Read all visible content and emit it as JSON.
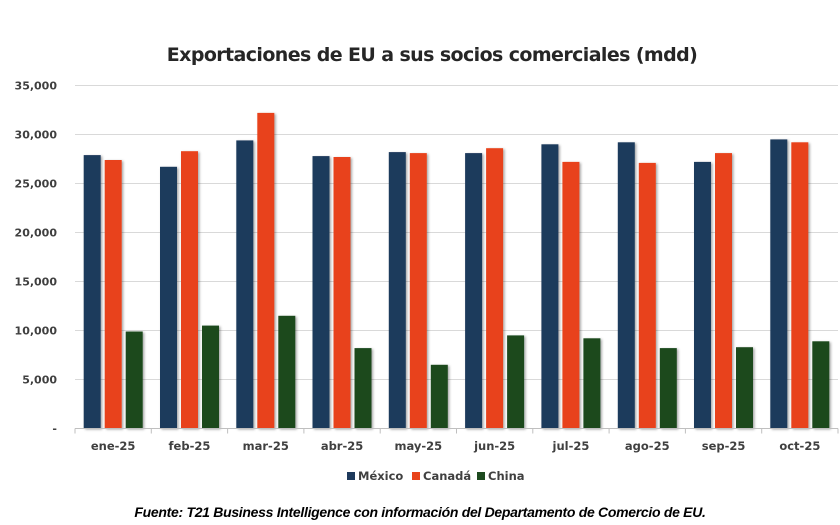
{
  "chart_data": {
    "type": "bar",
    "title": "Exportaciones de EU a sus socios comerciales (mdd)",
    "xlabel": "",
    "ylabel": "",
    "ylim": [
      0,
      35000
    ],
    "yticks": [
      0,
      5000,
      10000,
      15000,
      20000,
      25000,
      30000,
      35000
    ],
    "ytick_labels": [
      "-",
      "5,000",
      "10,000",
      "15,000",
      "20,000",
      "25,000",
      "30,000",
      "35,000"
    ],
    "grid": true,
    "legend_position": "bottom",
    "categories": [
      "ene-25",
      "feb-25",
      "mar-25",
      "abr-25",
      "may-25",
      "jun-25",
      "jul-25",
      "ago-25",
      "sep-25",
      "oct-25"
    ],
    "series": [
      {
        "name": "México",
        "color": "#1e3a5c",
        "values": [
          27900,
          26700,
          29400,
          27800,
          28200,
          28100,
          29000,
          29200,
          27200,
          29500
        ]
      },
      {
        "name": "Canadá",
        "color": "#e8431a",
        "values": [
          27400,
          28300,
          32200,
          27700,
          28100,
          28600,
          27200,
          27100,
          28100,
          29200
        ]
      },
      {
        "name": "China",
        "color": "#1d4a1f",
        "values": [
          9900,
          10500,
          11500,
          8200,
          6500,
          9500,
          9200,
          8200,
          8300,
          8900
        ]
      }
    ]
  },
  "source_note": "Fuente: T21 Business Intelligence con información del Departamento de Comercio de EU."
}
